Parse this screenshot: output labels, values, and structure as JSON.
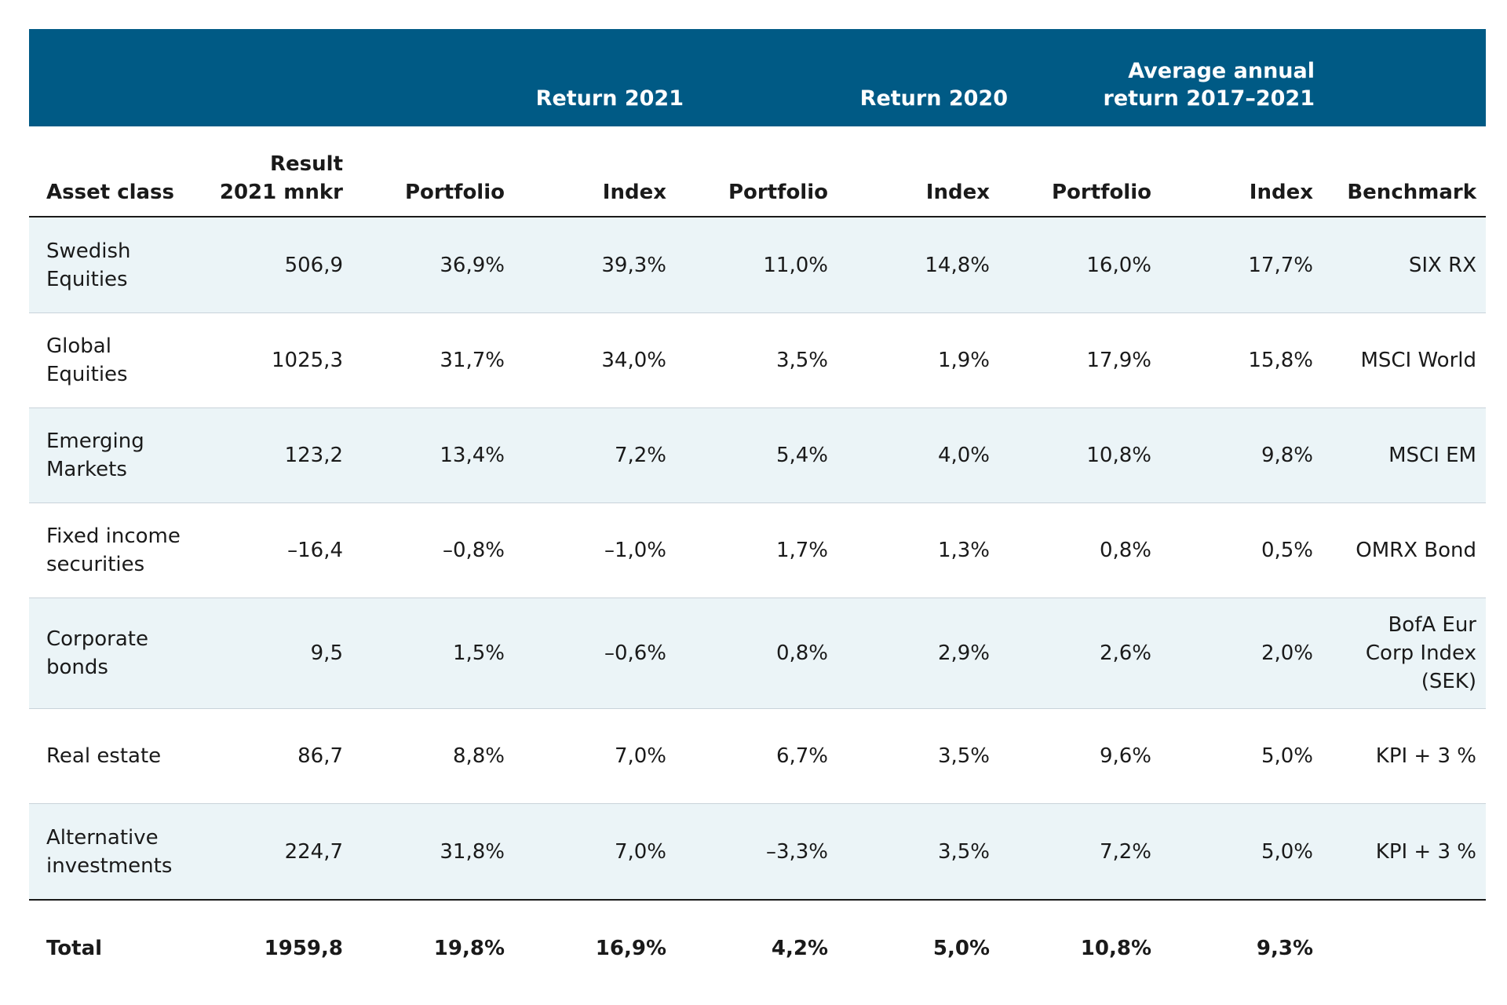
{
  "banner": {
    "group_2021": "Return 2021",
    "group_2020": "Return 2020",
    "group_avg": "Average annual\nreturn 2017–2021"
  },
  "columns": [
    "Asset class",
    "Result\n2021 mnkr",
    "Portfolio",
    "Index",
    "Portfolio",
    "Index",
    "Portfolio",
    "Index",
    "Benchmark"
  ],
  "rows": [
    {
      "cells": [
        "Swedish\nEquities",
        "506,9",
        "36,9%",
        "39,3%",
        "11,0%",
        "14,8%",
        "16,0%",
        "17,7%",
        "SIX RX"
      ]
    },
    {
      "cells": [
        "Global\nEquities",
        "1025,3",
        "31,7%",
        "34,0%",
        "3,5%",
        "1,9%",
        "17,9%",
        "15,8%",
        "MSCI World"
      ]
    },
    {
      "cells": [
        "Emerging\nMarkets",
        "123,2",
        "13,4%",
        "7,2%",
        "5,4%",
        "4,0%",
        "10,8%",
        "9,8%",
        "MSCI EM"
      ]
    },
    {
      "cells": [
        "Fixed income\nsecurities",
        "–16,4",
        "–0,8%",
        "–1,0%",
        "1,7%",
        "1,3%",
        "0,8%",
        "0,5%",
        "OMRX Bond"
      ]
    },
    {
      "cells": [
        "Corporate\nbonds",
        "9,5",
        "1,5%",
        "–0,6%",
        "0,8%",
        "2,9%",
        "2,6%",
        "2,0%",
        "BofA Eur\nCorp Index\n(SEK)"
      ]
    },
    {
      "cells": [
        "Real estate",
        "86,7",
        "8,8%",
        "7,0%",
        "6,7%",
        "3,5%",
        "9,6%",
        "5,0%",
        "KPI + 3 %"
      ]
    },
    {
      "cells": [
        "Alternative\ninvestments",
        "224,7",
        "31,8%",
        "7,0%",
        "–3,3%",
        "3,5%",
        "7,2%",
        "5,0%",
        "KPI + 3 %"
      ]
    }
  ],
  "total": {
    "cells": [
      "Total",
      "1959,8",
      "19,8%",
      "16,9%",
      "4,2%",
      "5,0%",
      "10,8%",
      "9,3%",
      ""
    ]
  },
  "colors": {
    "header_bg": "#005a85",
    "alt_row_bg": "#ebf4f7"
  }
}
